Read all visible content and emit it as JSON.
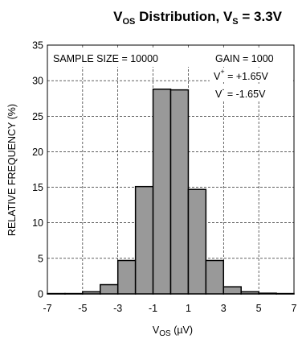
{
  "chart_data": {
    "type": "bar",
    "title": {
      "t1": "V",
      "s1": "OS",
      "t2": " Distribution, V",
      "s2": "S",
      "t3": " = 3.3V"
    },
    "xlabel": {
      "main": "V",
      "sub": "OS",
      "units": " (µV)"
    },
    "ylabel": "RELATIVE FREQUENCY (%)",
    "xlim": [
      -7,
      7
    ],
    "ylim": [
      0,
      35
    ],
    "xticks": [
      "-7",
      "-5",
      "-3",
      "-1",
      "1",
      "3",
      "5",
      "7"
    ],
    "yticks": [
      "0",
      "5",
      "10",
      "15",
      "20",
      "25",
      "30",
      "35"
    ],
    "grid": true,
    "bins": [
      {
        "x0": -7,
        "x1": -6,
        "value": 0.05
      },
      {
        "x0": -6,
        "x1": -5,
        "value": 0.05
      },
      {
        "x0": -5,
        "x1": -4,
        "value": 0.3
      },
      {
        "x0": -4,
        "x1": -3,
        "value": 1.3
      },
      {
        "x0": -3,
        "x1": -2,
        "value": 4.7
      },
      {
        "x0": -2,
        "x1": -1,
        "value": 15.1
      },
      {
        "x0": -1,
        "x1": 0,
        "value": 28.8
      },
      {
        "x0": 0,
        "x1": 1,
        "value": 28.7
      },
      {
        "x0": 1,
        "x1": 2,
        "value": 14.7
      },
      {
        "x0": 2,
        "x1": 3,
        "value": 4.7
      },
      {
        "x0": 3,
        "x1": 4,
        "value": 1.0
      },
      {
        "x0": 4,
        "x1": 5,
        "value": 0.3
      },
      {
        "x0": 5,
        "x1": 6,
        "value": 0.1
      },
      {
        "x0": 6,
        "x1": 7,
        "value": 0.05
      }
    ],
    "annotations": {
      "sample_size": "SAMPLE SIZE = 10000",
      "gain": "GAIN = 1000",
      "vplus_main": "V",
      "vplus_sup": "+",
      "vplus_rest": " = +1.65V",
      "vminus_main": "V",
      "vminus_sup": "-",
      "vminus_rest": " = -1.65V"
    },
    "colors": {
      "bar_fill": "#999999",
      "bar_edge": "#000000"
    }
  }
}
